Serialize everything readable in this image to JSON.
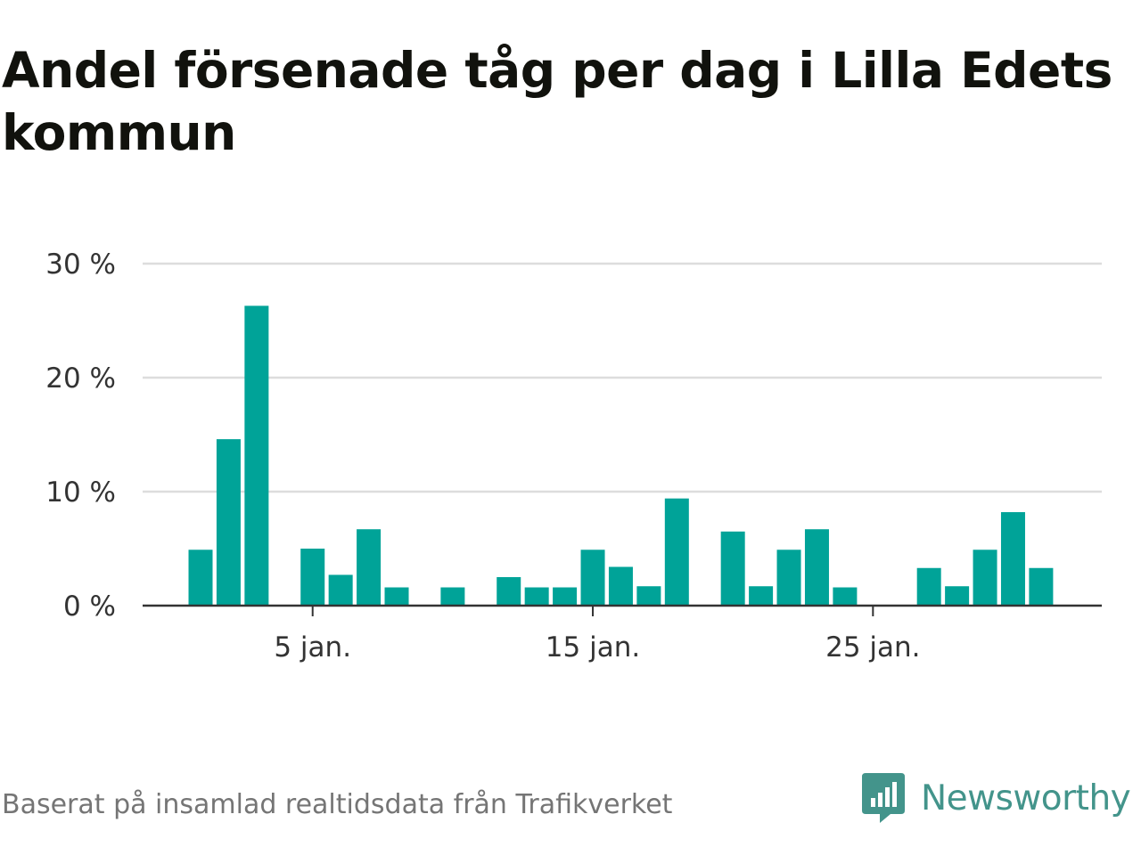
{
  "title": "Andel försenade tåg per dag i Lilla Edets kommun",
  "source": "Baserat på insamlad realtidsdata från Trafikverket",
  "brand": {
    "name": "Newsworthy",
    "icon": "newsworthy-logo-icon",
    "color": "#43948b"
  },
  "colors": {
    "bar": "#00a398",
    "grid": "#dddddd",
    "axis": "#333333"
  },
  "chart_data": {
    "type": "bar",
    "title": "Andel försenade tåg per dag i Lilla Edets kommun",
    "xlabel": "",
    "ylabel": "",
    "x": [
      1,
      2,
      3,
      4,
      5,
      6,
      7,
      8,
      9,
      10,
      11,
      12,
      13,
      14,
      15,
      16,
      17,
      18,
      19,
      20,
      21,
      22,
      23,
      24,
      25,
      26,
      27,
      28,
      29,
      30,
      31
    ],
    "values": [
      4.9,
      14.6,
      26.3,
      0,
      5.0,
      2.7,
      6.7,
      1.6,
      0,
      1.6,
      0,
      2.5,
      1.6,
      1.6,
      4.9,
      3.4,
      1.7,
      9.4,
      0,
      6.5,
      1.7,
      4.9,
      6.7,
      1.6,
      0,
      0,
      3.3,
      1.7,
      4.9,
      8.2,
      3.3
    ],
    "ylim": [
      0,
      30
    ],
    "yticks": [
      0,
      10,
      20,
      30
    ],
    "ytick_labels": [
      "0 %",
      "10 %",
      "20 %",
      "30 %"
    ],
    "xticks": [
      5,
      15,
      25
    ],
    "xtick_labels": [
      "5 jan.",
      "15 jan.",
      "25 jan."
    ],
    "grid": true,
    "legend": "none"
  }
}
